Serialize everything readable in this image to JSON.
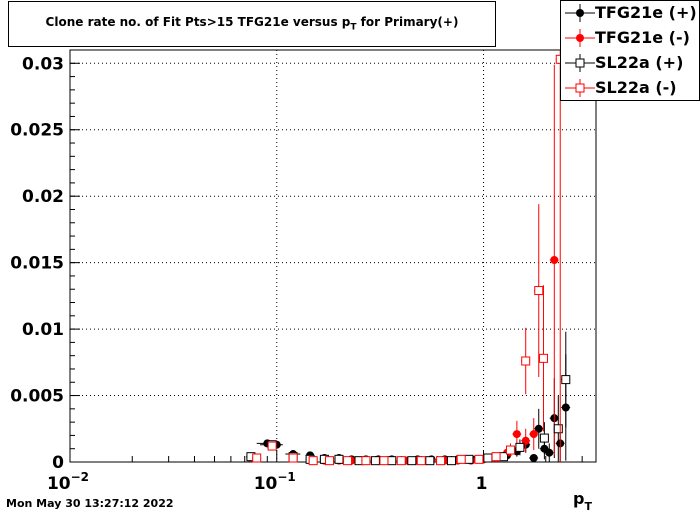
{
  "title": {
    "main": "Clone rate no. of Fit Pts>15 TFG21e versus p",
    "sub": "T",
    "tail": " for Primary(+)"
  },
  "legend": {
    "entries": [
      {
        "label": "TFG21e (+)",
        "color": "#000000",
        "marker": "filled-circle"
      },
      {
        "label": "TFG21e (-)",
        "color": "#ff0000",
        "marker": "filled-circle"
      },
      {
        "label": "SL22a (+)",
        "color": "#000000",
        "marker": "open-square"
      },
      {
        "label": "SL22a (-)",
        "color": "#ff0000",
        "marker": "open-square"
      }
    ]
  },
  "timestamp": "Mon May 30 13:27:12 2022",
  "chart_data": {
    "type": "scatter",
    "xlabel": "p",
    "xlabel_sub": "T",
    "ylabel": "",
    "x_scale": "log",
    "xlim": [
      0.01,
      3.5
    ],
    "ylim": [
      0,
      0.031
    ],
    "grid": true,
    "legend_position": "top-right",
    "x_tick_labels": [
      {
        "x": 0.01,
        "base": "10",
        "exp": "−2"
      },
      {
        "x": 0.1,
        "base": "10",
        "exp": "−1"
      },
      {
        "x": 1,
        "base": "1",
        "exp": ""
      }
    ],
    "y_tick_labels": [
      {
        "y": 0,
        "label": "0"
      },
      {
        "y": 0.005,
        "label": "0.005"
      },
      {
        "y": 0.01,
        "label": "0.01"
      },
      {
        "y": 0.015,
        "label": "0.015"
      },
      {
        "y": 0.02,
        "label": "0.02"
      },
      {
        "y": 0.025,
        "label": "0.025"
      },
      {
        "y": 0.03,
        "label": "0.03"
      }
    ],
    "series": [
      {
        "name": "TFG21e (+)",
        "color": "#000000",
        "marker": "filled-circle",
        "points": [
          {
            "x": 0.075,
            "y": 0.0004,
            "ey": 0.0002
          },
          {
            "x": 0.09,
            "y": 0.0014,
            "ey": 0.0002,
            "ex": 0.01
          },
          {
            "x": 0.1,
            "y": 0.0013,
            "ey": 0.0002
          },
          {
            "x": 0.12,
            "y": 0.0006,
            "ey": 0.0002,
            "ex": 0.01
          },
          {
            "x": 0.145,
            "y": 0.0005,
            "ey": 0.0002
          },
          {
            "x": 0.17,
            "y": 0.0003,
            "ey": 0.0001
          },
          {
            "x": 0.2,
            "y": 0.0003,
            "ey": 0.0001
          },
          {
            "x": 0.23,
            "y": 0.0002,
            "ey": 0.0001
          },
          {
            "x": 0.27,
            "y": 0.0002,
            "ey": 0.0001
          },
          {
            "x": 0.31,
            "y": 0.0002,
            "ey": 0.0001
          },
          {
            "x": 0.36,
            "y": 0.0002,
            "ey": 0.0001
          },
          {
            "x": 0.42,
            "y": 0.0001,
            "ey": 0.0001
          },
          {
            "x": 0.48,
            "y": 0.0002,
            "ey": 0.0001
          },
          {
            "x": 0.56,
            "y": 0.0002,
            "ey": 0.0001
          },
          {
            "x": 0.65,
            "y": 0.0002,
            "ey": 0.0001
          },
          {
            "x": 0.75,
            "y": 0.0002,
            "ey": 0.0001
          },
          {
            "x": 0.87,
            "y": 0.0002,
            "ey": 0.0001
          },
          {
            "x": 1.0,
            "y": 0.0002,
            "ey": 0.0001
          },
          {
            "x": 1.15,
            "y": 0.0003,
            "ey": 0.0002
          },
          {
            "x": 1.3,
            "y": 0.0005,
            "ey": 0.0003
          },
          {
            "x": 1.45,
            "y": 0.0008,
            "ey": 0.0004
          },
          {
            "x": 1.6,
            "y": 0.0013,
            "ey": 0.0006
          },
          {
            "x": 1.75,
            "y": 0.0003,
            "ey": 0.0003
          },
          {
            "x": 1.85,
            "y": 0.0025,
            "ey": 0.0015
          },
          {
            "x": 1.97,
            "y": 0.001,
            "ey": 0.0008
          },
          {
            "x": 2.08,
            "y": 0.0007,
            "ey": 0.0007
          },
          {
            "x": 2.2,
            "y": 0.0033,
            "ey": 0.003
          },
          {
            "x": 2.35,
            "y": 0.0014,
            "ey": 0.0014
          },
          {
            "x": 2.5,
            "y": 0.0041,
            "ey": 0.004
          }
        ]
      },
      {
        "name": "TFG21e (-)",
        "color": "#ff0000",
        "marker": "filled-circle",
        "points": [
          {
            "x": 0.075,
            "y": 0.0003,
            "ey": 0.0002
          },
          {
            "x": 0.095,
            "y": 0.0013,
            "ey": 0.0003
          },
          {
            "x": 0.12,
            "y": 0.0003,
            "ey": 0.0002
          },
          {
            "x": 0.145,
            "y": 0.0002,
            "ey": 0.0001
          },
          {
            "x": 0.17,
            "y": 0.0001,
            "ey": 0.0001
          },
          {
            "x": 0.2,
            "y": 0.0001,
            "ey": 0.0001
          },
          {
            "x": 0.23,
            "y": 0.0001,
            "ey": 0.0001
          },
          {
            "x": 0.27,
            "y": 0.0001,
            "ey": 0.0001
          },
          {
            "x": 0.31,
            "y": 0.0001,
            "ey": 0.0001
          },
          {
            "x": 0.36,
            "y": 0.0001,
            "ey": 0.0001
          },
          {
            "x": 0.42,
            "y": 0.0001,
            "ey": 0.0001
          },
          {
            "x": 0.48,
            "y": 0.0001,
            "ey": 0.0001
          },
          {
            "x": 0.56,
            "y": 0.0001,
            "ey": 0.0001
          },
          {
            "x": 0.65,
            "y": 0.0001,
            "ey": 0.0001
          },
          {
            "x": 0.75,
            "y": 0.0001,
            "ey": 0.0001
          },
          {
            "x": 0.87,
            "y": 0.0001,
            "ey": 0.0001
          },
          {
            "x": 1.0,
            "y": 0.0002,
            "ey": 0.0001
          },
          {
            "x": 1.15,
            "y": 0.0003,
            "ey": 0.0002
          },
          {
            "x": 1.3,
            "y": 0.0007,
            "ey": 0.0004
          },
          {
            "x": 1.45,
            "y": 0.0021,
            "ey": 0.001
          },
          {
            "x": 1.6,
            "y": 0.0016,
            "ey": 0.0009
          },
          {
            "x": 1.75,
            "y": 0.0021,
            "ey": 0.0012
          },
          {
            "x": 2.2,
            "y": 0.0152,
            "ey": 0.0147
          }
        ]
      },
      {
        "name": "SL22a (+)",
        "color": "#000000",
        "marker": "open-square",
        "points": [
          {
            "x": 0.075,
            "y": 0.0004,
            "ey": 0.0002
          },
          {
            "x": 0.095,
            "y": 0.0013,
            "ey": 0.0002,
            "ex": 0.012
          },
          {
            "x": 0.12,
            "y": 0.0004,
            "ey": 0.0002
          },
          {
            "x": 0.145,
            "y": 0.0002,
            "ey": 0.0001
          },
          {
            "x": 0.17,
            "y": 0.0002,
            "ey": 0.0001
          },
          {
            "x": 0.2,
            "y": 0.0002,
            "ey": 0.0001
          },
          {
            "x": 0.25,
            "y": 0.0001,
            "ey": 0.0001
          },
          {
            "x": 0.3,
            "y": 0.0001,
            "ey": 0.0001
          },
          {
            "x": 0.36,
            "y": 0.0001,
            "ey": 0.0001
          },
          {
            "x": 0.45,
            "y": 0.0001,
            "ey": 0.0001
          },
          {
            "x": 0.55,
            "y": 0.0001,
            "ey": 0.0001
          },
          {
            "x": 0.7,
            "y": 0.0001,
            "ey": 0.0001
          },
          {
            "x": 0.85,
            "y": 0.0002,
            "ey": 0.0001
          },
          {
            "x": 1.05,
            "y": 0.0003,
            "ey": 0.0002
          },
          {
            "x": 1.25,
            "y": 0.0004,
            "ey": 0.0003
          },
          {
            "x": 1.5,
            "y": 0.0011,
            "ey": 0.0006
          },
          {
            "x": 1.97,
            "y": 0.0018,
            "ey": 0.0012
          },
          {
            "x": 2.3,
            "y": 0.0025,
            "ey": 0.0025
          },
          {
            "x": 2.5,
            "y": 0.0062,
            "ey": 0.0036
          }
        ]
      },
      {
        "name": "SL22a (-)",
        "color": "#ff0000",
        "marker": "open-square",
        "points": [
          {
            "x": 0.08,
            "y": 0.0003,
            "ey": 0.0002
          },
          {
            "x": 0.095,
            "y": 0.0012,
            "ey": 0.0002
          },
          {
            "x": 0.12,
            "y": 0.0003,
            "ey": 0.0002
          },
          {
            "x": 0.15,
            "y": 0.0001,
            "ey": 0.0001
          },
          {
            "x": 0.18,
            "y": 0.0001,
            "ey": 0.0001
          },
          {
            "x": 0.22,
            "y": 0.0001,
            "ey": 0.0001
          },
          {
            "x": 0.27,
            "y": 0.0001,
            "ey": 0.0001
          },
          {
            "x": 0.33,
            "y": 0.0001,
            "ey": 0.0001
          },
          {
            "x": 0.4,
            "y": 0.0001,
            "ey": 0.0001
          },
          {
            "x": 0.5,
            "y": 0.0001,
            "ey": 0.0001
          },
          {
            "x": 0.62,
            "y": 0.0001,
            "ey": 0.0001
          },
          {
            "x": 0.78,
            "y": 0.0002,
            "ey": 0.0001
          },
          {
            "x": 0.95,
            "y": 0.0002,
            "ey": 0.0001
          },
          {
            "x": 1.15,
            "y": 0.0004,
            "ey": 0.0002
          },
          {
            "x": 1.35,
            "y": 0.0009,
            "ey": 0.0005
          },
          {
            "x": 1.6,
            "y": 0.0076,
            "ey": 0.0025
          },
          {
            "x": 1.85,
            "y": 0.0129,
            "ey": 0.0065
          },
          {
            "x": 1.95,
            "y": 0.0078,
            "ey": 0.0055
          },
          {
            "x": 2.35,
            "y": 0.0303,
            "ey": 0.0303
          }
        ]
      }
    ]
  }
}
